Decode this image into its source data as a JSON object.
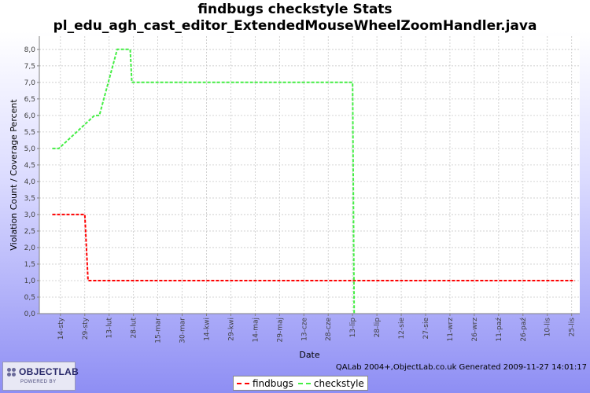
{
  "chart_data": {
    "type": "line",
    "title": [
      "findbugs checkstyle  Stats",
      "pl_edu_agh_cast_editor_ExtendedMouseWheelZoomHandler.java"
    ],
    "xlabel": "Date",
    "ylabel": "Violation Count / Coverage Percent",
    "ylim": [
      0,
      8.4
    ],
    "yticks": [
      "0,0",
      "0,5",
      "1,0",
      "1,5",
      "2,0",
      "2,5",
      "3,0",
      "3,5",
      "4,0",
      "4,5",
      "5,0",
      "5,5",
      "6,0",
      "6,5",
      "7,0",
      "7,5",
      "8,0"
    ],
    "x_ticks": [
      "14-sty",
      "29-sty",
      "13-lut",
      "28-lut",
      "15-mar",
      "30-mar",
      "14-kwi",
      "29-kwi",
      "14-maj",
      "29-maj",
      "13-cze",
      "28-cze",
      "13-lip",
      "28-lip",
      "12-sie",
      "27-sie",
      "11-wrz",
      "26-wrz",
      "11-paź",
      "26-paź",
      "10-lis",
      "25-lis"
    ],
    "grid": true,
    "legend_position": "bottom",
    "series": [
      {
        "name": "findbugs",
        "color": "#ff0000",
        "points": [
          [
            "9-sty",
            3.0
          ],
          [
            "29-sty",
            3.0
          ],
          [
            "31-sty",
            1.0
          ],
          [
            "28-lut",
            1.0
          ],
          [
            "13-lip",
            1.0
          ],
          [
            "27-lis",
            1.0
          ]
        ]
      },
      {
        "name": "checkstyle",
        "color": "#44ee44",
        "points": [
          [
            "9-sty",
            5.0
          ],
          [
            "13-sty",
            5.0
          ],
          [
            "4-lut",
            6.0
          ],
          [
            "7-lut",
            6.0
          ],
          [
            "18-lut",
            8.0
          ],
          [
            "26-lut",
            8.0
          ],
          [
            "27-lut",
            7.0
          ],
          [
            "13-lip",
            7.0
          ],
          [
            "14-lip",
            0.0
          ]
        ]
      }
    ]
  },
  "footer": "QALab 2004+,ObjectLab.co.uk Generated 2009-11-27 14:01:17",
  "logo": {
    "text": "OBJECTLAB",
    "sub": "POWERED BY"
  }
}
